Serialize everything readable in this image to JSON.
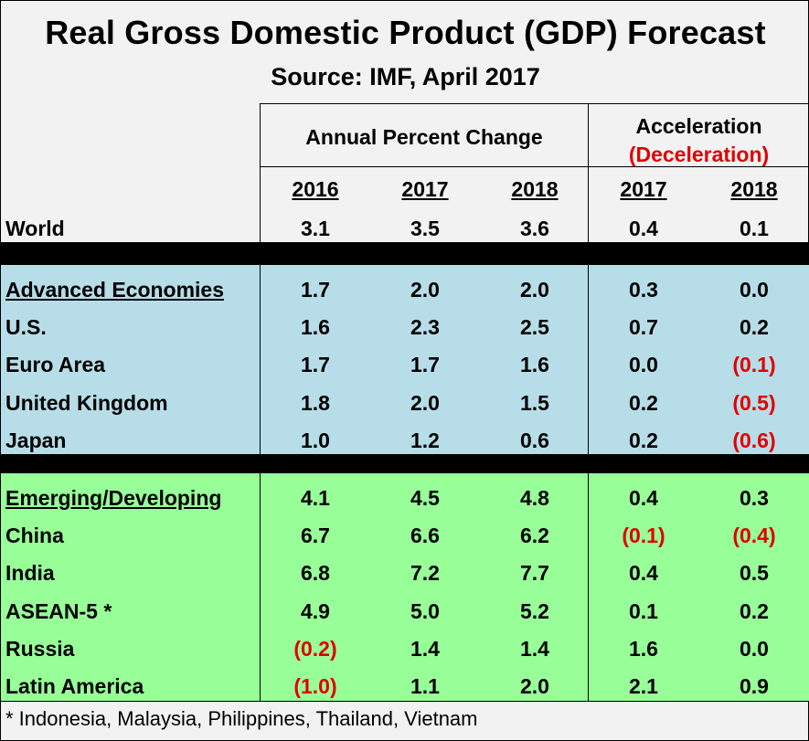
{
  "title": "Real Gross Domestic Product (GDP) Forecast",
  "subtitle": "Source:  IMF, April 2017",
  "header": {
    "group1": "Annual Percent Change",
    "group2_line1": "Acceleration",
    "group2_line2": "(Deceleration)",
    "years": [
      "2016",
      "2017",
      "2018",
      "2017",
      "2018"
    ]
  },
  "world": {
    "label": "World",
    "values": [
      "3.1",
      "3.5",
      "3.6",
      "0.4",
      "0.1"
    ]
  },
  "advanced": [
    {
      "label": "Advanced Economies",
      "values": [
        "1.7",
        "2.0",
        "2.0",
        "0.3",
        "0.0"
      ]
    },
    {
      "label": "U.S.",
      "values": [
        "1.6",
        "2.3",
        "2.5",
        "0.7",
        "0.2"
      ]
    },
    {
      "label": "Euro Area",
      "values": [
        "1.7",
        "1.7",
        "1.6",
        "0.0",
        "(0.1)"
      ]
    },
    {
      "label": "United Kingdom",
      "values": [
        "1.8",
        "2.0",
        "1.5",
        "0.2",
        "(0.5)"
      ]
    },
    {
      "label": "Japan",
      "values": [
        "1.0",
        "1.2",
        "0.6",
        "0.2",
        "(0.6)"
      ]
    }
  ],
  "emerging": [
    {
      "label": "Emerging/Developing",
      "values": [
        "4.1",
        "4.5",
        "4.8",
        "0.4",
        "0.3"
      ]
    },
    {
      "label": "China",
      "values": [
        "6.7",
        "6.6",
        "6.2",
        "(0.1)",
        "(0.4)"
      ]
    },
    {
      "label": "India",
      "values": [
        "6.8",
        "7.2",
        "7.7",
        "0.4",
        "0.5"
      ]
    },
    {
      "label": "ASEAN-5 *",
      "values": [
        "4.9",
        "5.0",
        "5.2",
        "0.1",
        "0.2"
      ]
    },
    {
      "label": "Russia",
      "values": [
        "(0.2)",
        "1.4",
        "1.4",
        "1.6",
        "0.0"
      ]
    },
    {
      "label": "Latin America",
      "values": [
        "(1.0)",
        "1.1",
        "2.0",
        "2.1",
        "0.9"
      ]
    }
  ],
  "footnote": "* Indonesia, Malaysia, Philippines, Thailand, Vietnam",
  "colors": {
    "advanced_band": "#b7dde8",
    "emerging_band": "#98ff98",
    "negative": "#e00000",
    "background": "#f2f2f2"
  }
}
